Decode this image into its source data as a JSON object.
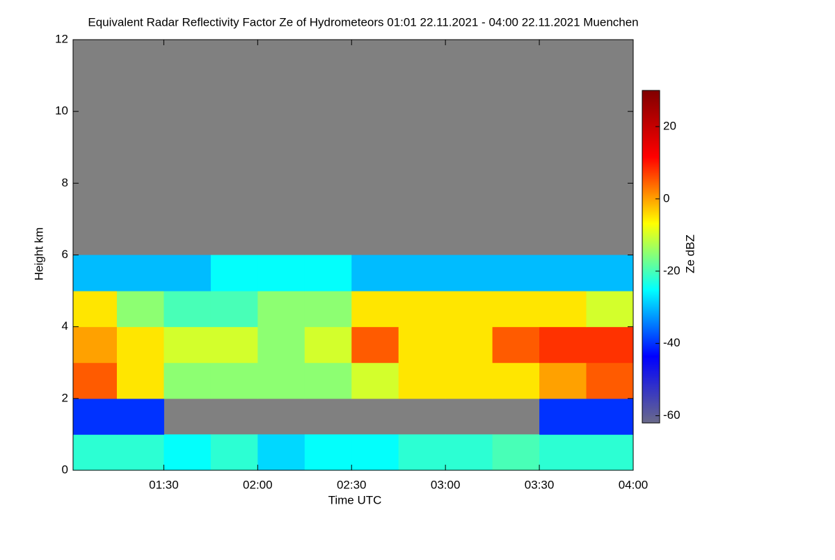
{
  "chart_data": {
    "type": "heatmap",
    "title": "Equivalent Radar Reflectivity Factor Ze of Hydrometeors   01:01 22.11.2021 - 04:00 22.11.2021 Muenchen",
    "x_label": "Time UTC",
    "y_label": "Height km",
    "colorbar_label": "Ze dBZ",
    "x": [
      1.125,
      1.375,
      1.625,
      1.875,
      2.125,
      2.375,
      2.625,
      2.875,
      3.125,
      3.375,
      3.625,
      3.875
    ],
    "y": [
      0.5,
      1.5,
      2.5,
      3.5,
      4.5,
      5.5,
      6.5,
      7.5,
      8.5,
      9.5,
      10.5,
      11.5
    ],
    "z": [
      [
        -22,
        -22,
        -25,
        -22,
        -28,
        -25,
        -25,
        -22,
        -22,
        -20,
        -22,
        -22
      ],
      [
        -40,
        -40,
        null,
        null,
        null,
        null,
        null,
        null,
        null,
        null,
        -40,
        -40
      ],
      [
        5,
        -5,
        -15,
        -15,
        -15,
        -15,
        -10,
        -5,
        -5,
        -5,
        0,
        5
      ],
      [
        0,
        -5,
        -10,
        -10,
        -15,
        -10,
        5,
        -5,
        -5,
        5,
        8,
        8
      ],
      [
        -5,
        -15,
        -20,
        -20,
        -15,
        -15,
        -5,
        -5,
        -5,
        -5,
        -5,
        -10
      ],
      [
        -30,
        -30,
        -30,
        -25,
        -25,
        -25,
        -30,
        -30,
        -30,
        -30,
        -30,
        -30
      ],
      [
        null,
        null,
        null,
        null,
        null,
        null,
        null,
        null,
        null,
        null,
        null,
        null
      ],
      [
        null,
        null,
        null,
        null,
        null,
        null,
        null,
        null,
        null,
        null,
        null,
        null
      ],
      [
        null,
        null,
        null,
        null,
        null,
        null,
        null,
        null,
        null,
        null,
        null,
        null
      ],
      [
        null,
        null,
        null,
        null,
        null,
        null,
        null,
        null,
        null,
        null,
        null,
        null
      ],
      [
        null,
        null,
        null,
        null,
        null,
        null,
        null,
        null,
        null,
        null,
        null,
        null
      ],
      [
        null,
        null,
        null,
        null,
        null,
        null,
        null,
        null,
        null,
        null,
        null,
        null
      ]
    ],
    "cell_width": 0.25,
    "cell_height": 1,
    "xlim": [
      1.0167,
      4.0
    ],
    "xticks": [
      {
        "value": 1.5,
        "label": "01:30"
      },
      {
        "value": 2.0,
        "label": "02:00"
      },
      {
        "value": 2.5,
        "label": "02:30"
      },
      {
        "value": 3.0,
        "label": "03:00"
      },
      {
        "value": 3.5,
        "label": "03:30"
      },
      {
        "value": 4.0,
        "label": "04:00"
      }
    ],
    "ylim": [
      0,
      12
    ],
    "yticks": [
      0,
      2,
      4,
      6,
      8,
      10,
      12
    ],
    "zlim": [
      -62,
      30
    ],
    "zticks": [
      -60,
      -40,
      -20,
      0,
      20
    ],
    "colorscale": [
      "#6a6a8a",
      "#0000ff",
      "#00ffff",
      "#ffff00",
      "#ff0000",
      "#800000"
    ],
    "nodata_color": "#808080"
  }
}
